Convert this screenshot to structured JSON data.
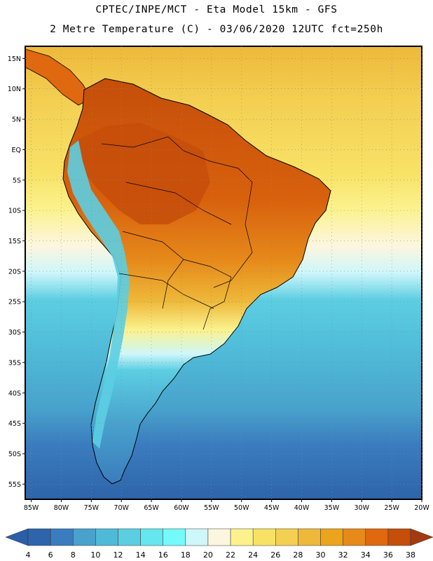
{
  "header": {
    "line1": "CPTEC/INPE/MCT -  Eta Model 15km - GFS",
    "line2": "2 Metre Temperature (C) - 03/06/2020 12UTC fct=250h"
  },
  "latitude_labels": [
    "15N",
    "10N",
    "5N",
    "EQ",
    "5S",
    "10S",
    "15S",
    "20S",
    "25S",
    "30S",
    "35S",
    "40S",
    "45S",
    "50S",
    "55S"
  ],
  "longitude_labels": [
    "85W",
    "80W",
    "75W",
    "70W",
    "65W",
    "60W",
    "55W",
    "50W",
    "45W",
    "40W",
    "35W",
    "30W",
    "25W",
    "20W"
  ],
  "colorbar": {
    "labels": [
      "4",
      "6",
      "8",
      "10",
      "12",
      "14",
      "16",
      "18",
      "20",
      "22",
      "24",
      "26",
      "28",
      "30",
      "32",
      "34",
      "36",
      "38"
    ],
    "low_color": "#2a5ea6",
    "high_color": "#a53a10",
    "colors": [
      "#2e64aa",
      "#3a7cbe",
      "#48a2cc",
      "#4fbad8",
      "#5ccee2",
      "#66e6ee",
      "#74fafa",
      "#cef6fb",
      "#fdf6df",
      "#fbf28e",
      "#f8e266",
      "#f3cf52",
      "#eeb93a",
      "#eaa51c",
      "#e68a1a",
      "#e0680e",
      "#c54e0a"
    ]
  },
  "colors": {
    "ocean_tropics": "#f3cf52",
    "ocean_mid": "#5ccee2",
    "ocean_south": "#2e64aa",
    "amazon": "#c8540c",
    "andes": "#5ccee2",
    "border": "#000000"
  }
}
